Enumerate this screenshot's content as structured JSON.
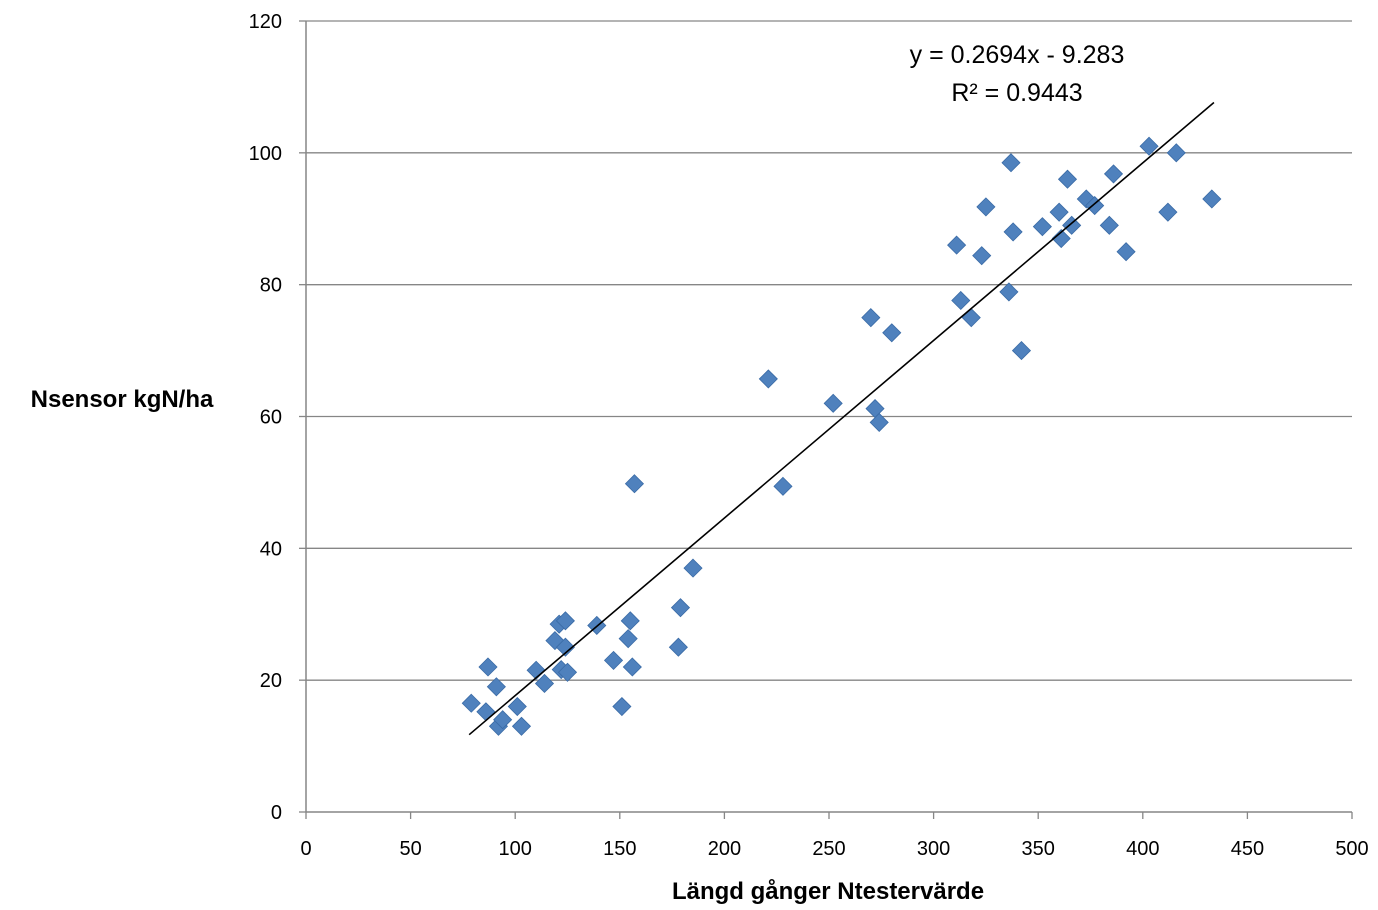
{
  "chart_data": {
    "type": "scatter",
    "xlabel": "Längd gånger Ntestervärde",
    "ylabel": "Nsensor kgN/ha",
    "xlim": [
      0,
      500
    ],
    "ylim": [
      0,
      120
    ],
    "x_ticks": [
      "0",
      "50",
      "100",
      "150",
      "200",
      "250",
      "300",
      "350",
      "400",
      "450",
      "500"
    ],
    "y_ticks": [
      "0",
      "20",
      "40",
      "60",
      "80",
      "100",
      "120"
    ],
    "grid": "horizontal",
    "marker": "diamond",
    "marker_color": "#4F81BD",
    "trendline": {
      "type": "linear",
      "slope": 0.2694,
      "intercept": -9.283,
      "x_range": [
        78,
        434
      ],
      "color": "#000000",
      "equation_text": "y = 0.2694x - 9.283",
      "r2_text": "R² = 0.9443"
    },
    "points": [
      [
        79,
        16.5
      ],
      [
        86,
        15.2
      ],
      [
        87,
        22
      ],
      [
        91,
        19
      ],
      [
        92,
        13
      ],
      [
        94,
        14
      ],
      [
        101,
        16
      ],
      [
        103,
        13
      ],
      [
        110,
        21.5
      ],
      [
        114,
        19.5
      ],
      [
        119,
        26
      ],
      [
        121,
        28.5
      ],
      [
        122,
        21.6
      ],
      [
        124,
        25
      ],
      [
        124,
        29
      ],
      [
        125,
        21.2
      ],
      [
        139,
        28.3
      ],
      [
        147,
        23
      ],
      [
        151,
        16
      ],
      [
        154,
        26.3
      ],
      [
        155,
        29
      ],
      [
        156,
        22
      ],
      [
        157,
        49.8
      ],
      [
        178,
        25
      ],
      [
        179,
        31
      ],
      [
        185,
        37
      ],
      [
        221,
        65.7
      ],
      [
        228,
        49.4
      ],
      [
        252,
        62
      ],
      [
        270,
        75
      ],
      [
        272,
        61.2
      ],
      [
        274,
        59.1
      ],
      [
        280,
        72.7
      ],
      [
        311,
        86
      ],
      [
        313,
        77.6
      ],
      [
        318,
        75
      ],
      [
        323,
        84.4
      ],
      [
        325,
        91.8
      ],
      [
        336,
        78.9
      ],
      [
        337,
        98.5
      ],
      [
        338,
        88
      ],
      [
        342,
        70
      ],
      [
        352,
        88.8
      ],
      [
        360,
        91
      ],
      [
        361,
        87
      ],
      [
        364,
        96
      ],
      [
        366,
        89
      ],
      [
        373,
        93
      ],
      [
        377,
        92
      ],
      [
        384,
        89
      ],
      [
        386,
        96.8
      ],
      [
        392,
        85
      ],
      [
        403,
        101
      ],
      [
        412,
        91
      ],
      [
        416,
        100
      ],
      [
        433,
        93
      ]
    ]
  }
}
